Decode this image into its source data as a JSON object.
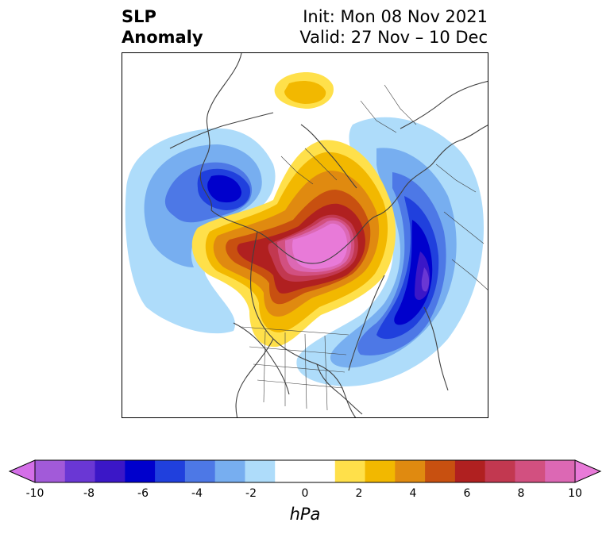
{
  "title": {
    "left_line1": "SLP",
    "left_line2": "Anomaly",
    "right_line1": "Init: Mon 08 Nov 2021",
    "right_line2": "Valid: 27 Nov – 10 Dec"
  },
  "colorbar": {
    "unit": "hPa",
    "ticks": [
      "-10",
      "-8",
      "-6",
      "-4",
      "-2",
      "0",
      "2",
      "4",
      "6",
      "8",
      "10"
    ],
    "colors": [
      "#d46fe8",
      "#a25ad9",
      "#6a37d4",
      "#3b17c7",
      "#0000cc",
      "#2040dd",
      "#4d78e6",
      "#77aef0",
      "#aedcfa",
      "#ffffff",
      "#ffffff",
      "#ffe04a",
      "#f2b800",
      "#e08a10",
      "#c85010",
      "#b02020",
      "#c23850",
      "#d25080",
      "#dc68b4",
      "#e87ad8"
    ]
  },
  "colors": {
    "neg_extreme": "#d46fe8",
    "pos_extreme": "#e87ad8",
    "coastline": "#404040"
  }
}
